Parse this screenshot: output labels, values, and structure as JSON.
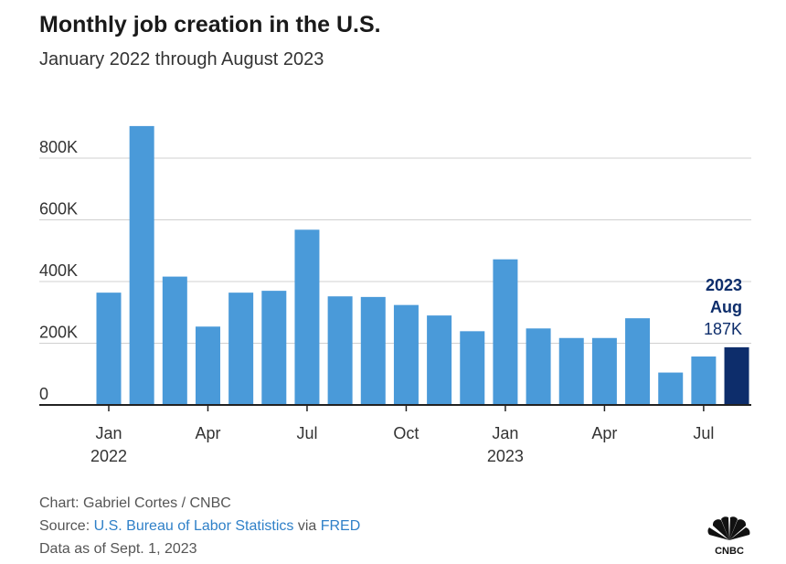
{
  "header": {
    "title": "Monthly job creation in the U.S.",
    "subtitle": "January 2022 through August 2023"
  },
  "footer": {
    "credit": "Chart: Gabriel Cortes / CNBC",
    "source_prefix": "Source: ",
    "source_link": "U.S. Bureau of Labor Statistics",
    "source_mid": " via ",
    "source_link2": "FRED",
    "data_as_of": "Data as of Sept. 1, 2023"
  },
  "logo": {
    "name": "cnbc-peacock-icon",
    "text": "CNBC"
  },
  "colors": {
    "bar": "#4a9ad9",
    "highlight": "#0d2d6b",
    "grid": "#d0d0d0",
    "axis": "#222222"
  },
  "chart_data": {
    "type": "bar",
    "title": "Monthly job creation in the U.S.",
    "subtitle": "January 2022 through August 2023",
    "categories": [
      "Jan 2022",
      "Feb 2022",
      "Mar 2022",
      "Apr 2022",
      "May 2022",
      "Jun 2022",
      "Jul 2022",
      "Aug 2022",
      "Sep 2022",
      "Oct 2022",
      "Nov 2022",
      "Dec 2022",
      "Jan 2023",
      "Feb 2023",
      "Mar 2023",
      "Apr 2023",
      "May 2023",
      "Jun 2023",
      "Jul 2023",
      "Aug 2023"
    ],
    "values": [
      364,
      904,
      416,
      254,
      364,
      370,
      568,
      352,
      350,
      324,
      290,
      239,
      472,
      248,
      217,
      217,
      281,
      105,
      157,
      187
    ],
    "units": "thousands",
    "ylim": [
      0,
      900
    ],
    "yticks": [
      {
        "value": 0,
        "label": "0"
      },
      {
        "value": 200,
        "label": "200K"
      },
      {
        "value": 400,
        "label": "400K"
      },
      {
        "value": 600,
        "label": "600K"
      },
      {
        "value": 800,
        "label": "800K"
      }
    ],
    "xticks": [
      {
        "index": 0,
        "label": "Jan",
        "year": "2022"
      },
      {
        "index": 3,
        "label": "Apr",
        "year": ""
      },
      {
        "index": 6,
        "label": "Jul",
        "year": ""
      },
      {
        "index": 9,
        "label": "Oct",
        "year": ""
      },
      {
        "index": 12,
        "label": "Jan",
        "year": "2023"
      },
      {
        "index": 15,
        "label": "Apr",
        "year": ""
      },
      {
        "index": 18,
        "label": "Jul",
        "year": ""
      }
    ],
    "highlight": {
      "index": 19,
      "year": "2023",
      "month": "Aug",
      "value_label": "187K"
    },
    "xlabel": "",
    "ylabel": "",
    "grid": true
  }
}
